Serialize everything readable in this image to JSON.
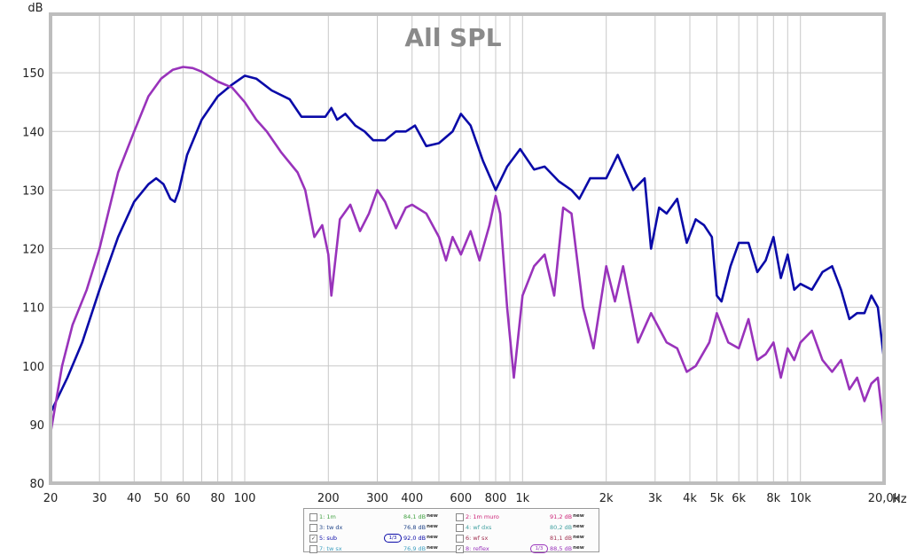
{
  "chart_data": {
    "type": "line",
    "title": "All SPL",
    "ylabel": "dB",
    "xlabel": "Hz",
    "xscale": "log",
    "xlim": [
      20,
      20000
    ],
    "ylim": [
      80,
      160
    ],
    "grid": true,
    "y_ticks": [
      {
        "v": 80,
        "label": "80"
      },
      {
        "v": 90,
        "label": "90"
      },
      {
        "v": 100,
        "label": "100"
      },
      {
        "v": 110,
        "label": "110"
      },
      {
        "v": 120,
        "label": "120"
      },
      {
        "v": 130,
        "label": "130"
      },
      {
        "v": 140,
        "label": "140"
      },
      {
        "v": 150,
        "label": "150"
      }
    ],
    "x_ticks": [
      {
        "v": 20,
        "label": "20"
      },
      {
        "v": 30,
        "label": "30"
      },
      {
        "v": 40,
        "label": "40"
      },
      {
        "v": 50,
        "label": "50"
      },
      {
        "v": 60,
        "label": "60"
      },
      {
        "v": 80,
        "label": "80"
      },
      {
        "v": 100,
        "label": "100"
      },
      {
        "v": 200,
        "label": "200"
      },
      {
        "v": 300,
        "label": "300"
      },
      {
        "v": 400,
        "label": "400"
      },
      {
        "v": 600,
        "label": "600"
      },
      {
        "v": 800,
        "label": "800"
      },
      {
        "v": 1000,
        "label": "1k"
      },
      {
        "v": 2000,
        "label": "2k"
      },
      {
        "v": 3000,
        "label": "3k"
      },
      {
        "v": 4000,
        "label": "4k"
      },
      {
        "v": 5000,
        "label": "5k"
      },
      {
        "v": 6000,
        "label": "6k"
      },
      {
        "v": 8000,
        "label": "8k"
      },
      {
        "v": 10000,
        "label": "10k"
      },
      {
        "v": 20000,
        "label": "20,0k"
      }
    ],
    "series": [
      {
        "name": "sub",
        "color": "#0a0aa8",
        "points": [
          [
            20,
            92
          ],
          [
            23,
            98
          ],
          [
            26,
            104
          ],
          [
            30,
            113
          ],
          [
            35,
            122
          ],
          [
            40,
            128
          ],
          [
            45,
            131
          ],
          [
            48,
            132
          ],
          [
            51,
            131
          ],
          [
            54,
            128.5
          ],
          [
            56,
            128
          ],
          [
            58,
            130
          ],
          [
            62,
            136
          ],
          [
            70,
            142
          ],
          [
            80,
            146
          ],
          [
            90,
            148
          ],
          [
            100,
            149.5
          ],
          [
            110,
            149
          ],
          [
            125,
            147
          ],
          [
            145,
            145.5
          ],
          [
            160,
            142.5
          ],
          [
            180,
            142.5
          ],
          [
            195,
            142.5
          ],
          [
            205,
            144
          ],
          [
            215,
            142
          ],
          [
            230,
            143
          ],
          [
            250,
            141
          ],
          [
            270,
            140
          ],
          [
            290,
            138.5
          ],
          [
            320,
            138.5
          ],
          [
            350,
            140
          ],
          [
            380,
            140
          ],
          [
            410,
            141
          ],
          [
            450,
            137.5
          ],
          [
            500,
            138
          ],
          [
            560,
            140
          ],
          [
            600,
            143
          ],
          [
            650,
            141
          ],
          [
            720,
            135
          ],
          [
            800,
            130
          ],
          [
            880,
            134
          ],
          [
            980,
            137
          ],
          [
            1100,
            133.5
          ],
          [
            1200,
            134
          ],
          [
            1350,
            131.5
          ],
          [
            1500,
            130
          ],
          [
            1600,
            128.5
          ],
          [
            1750,
            132
          ],
          [
            2000,
            132
          ],
          [
            2200,
            136
          ],
          [
            2500,
            130
          ],
          [
            2750,
            132
          ],
          [
            2900,
            120
          ],
          [
            3100,
            127
          ],
          [
            3300,
            126
          ],
          [
            3600,
            128.5
          ],
          [
            3900,
            121
          ],
          [
            4200,
            125
          ],
          [
            4500,
            124
          ],
          [
            4800,
            122
          ],
          [
            5000,
            112
          ],
          [
            5200,
            111
          ],
          [
            5600,
            117
          ],
          [
            6000,
            121
          ],
          [
            6500,
            121
          ],
          [
            7000,
            116
          ],
          [
            7500,
            118
          ],
          [
            8000,
            122
          ],
          [
            8500,
            115
          ],
          [
            9000,
            119
          ],
          [
            9500,
            113
          ],
          [
            10000,
            114
          ],
          [
            11000,
            113
          ],
          [
            12000,
            116
          ],
          [
            13000,
            117
          ],
          [
            14000,
            113
          ],
          [
            15000,
            108
          ],
          [
            16000,
            109
          ],
          [
            17000,
            109
          ],
          [
            18000,
            112
          ],
          [
            19000,
            110
          ],
          [
            20000,
            101
          ]
        ]
      },
      {
        "name": "reflex",
        "color": "#9933bb",
        "points": [
          [
            20,
            88.5
          ],
          [
            22,
            100
          ],
          [
            24,
            107
          ],
          [
            27,
            113
          ],
          [
            30,
            120
          ],
          [
            35,
            133
          ],
          [
            40,
            140
          ],
          [
            45,
            146
          ],
          [
            50,
            149
          ],
          [
            55,
            150.5
          ],
          [
            60,
            151
          ],
          [
            65,
            150.8
          ],
          [
            70,
            150.2
          ],
          [
            80,
            148.5
          ],
          [
            90,
            147.5
          ],
          [
            100,
            145
          ],
          [
            110,
            142
          ],
          [
            120,
            140
          ],
          [
            135,
            136.5
          ],
          [
            155,
            133
          ],
          [
            165,
            130
          ],
          [
            178,
            122
          ],
          [
            190,
            124
          ],
          [
            200,
            119
          ],
          [
            205,
            112
          ],
          [
            220,
            125
          ],
          [
            240,
            127.5
          ],
          [
            260,
            123
          ],
          [
            280,
            126
          ],
          [
            300,
            130
          ],
          [
            320,
            128
          ],
          [
            350,
            123.5
          ],
          [
            380,
            127
          ],
          [
            400,
            127.5
          ],
          [
            450,
            126
          ],
          [
            500,
            122
          ],
          [
            530,
            118
          ],
          [
            560,
            122
          ],
          [
            600,
            119
          ],
          [
            650,
            123
          ],
          [
            700,
            118
          ],
          [
            760,
            124
          ],
          [
            800,
            129
          ],
          [
            830,
            126
          ],
          [
            880,
            110
          ],
          [
            930,
            98
          ],
          [
            1000,
            112
          ],
          [
            1100,
            117
          ],
          [
            1200,
            119
          ],
          [
            1300,
            112
          ],
          [
            1400,
            127
          ],
          [
            1500,
            126
          ],
          [
            1650,
            110
          ],
          [
            1800,
            103
          ],
          [
            2000,
            117
          ],
          [
            2150,
            111
          ],
          [
            2300,
            117
          ],
          [
            2600,
            104
          ],
          [
            2900,
            109
          ],
          [
            3300,
            104
          ],
          [
            3600,
            103
          ],
          [
            3900,
            99
          ],
          [
            4200,
            100
          ],
          [
            4700,
            104
          ],
          [
            5000,
            109
          ],
          [
            5500,
            104
          ],
          [
            6000,
            103
          ],
          [
            6500,
            108
          ],
          [
            7000,
            101
          ],
          [
            7500,
            102
          ],
          [
            8000,
            104
          ],
          [
            8500,
            98
          ],
          [
            9000,
            103
          ],
          [
            9500,
            101
          ],
          [
            10000,
            104
          ],
          [
            11000,
            106
          ],
          [
            12000,
            101
          ],
          [
            13000,
            99
          ],
          [
            14000,
            101
          ],
          [
            15000,
            96
          ],
          [
            16000,
            98
          ],
          [
            17000,
            94
          ],
          [
            18000,
            97
          ],
          [
            19000,
            98
          ],
          [
            20000,
            89
          ]
        ]
      }
    ]
  },
  "legend": {
    "items": [
      {
        "label": "1: 1m",
        "value": "84,1 dB",
        "suffix": "new",
        "checked": false,
        "color": "#40a040",
        "badge": ""
      },
      {
        "label": "2: 1m muro",
        "value": "91,2 dB",
        "suffix": "new",
        "checked": false,
        "color": "#cc2277",
        "badge": ""
      },
      {
        "label": "3: tw dx",
        "value": "76,8 dB",
        "suffix": "new",
        "checked": false,
        "color": "#204488",
        "badge": ""
      },
      {
        "label": "4: wf dxs",
        "value": "80,2 dB",
        "suffix": "new",
        "checked": false,
        "color": "#40a0a0",
        "badge": ""
      },
      {
        "label": "5: sub",
        "value": "92,0 dB",
        "suffix": "new",
        "checked": true,
        "color": "#0a0aa8",
        "badge": "1/3"
      },
      {
        "label": "6: wf sx",
        "value": "81,1 dB",
        "suffix": "new",
        "checked": false,
        "color": "#a03050",
        "badge": ""
      },
      {
        "label": "7: tw sx",
        "value": "76,9 dB",
        "suffix": "new",
        "checked": false,
        "color": "#40a0c0",
        "badge": ""
      },
      {
        "label": "8: reflex",
        "value": "88,5 dB",
        "suffix": "new",
        "checked": true,
        "color": "#9933bb",
        "badge": "1/3"
      }
    ]
  }
}
